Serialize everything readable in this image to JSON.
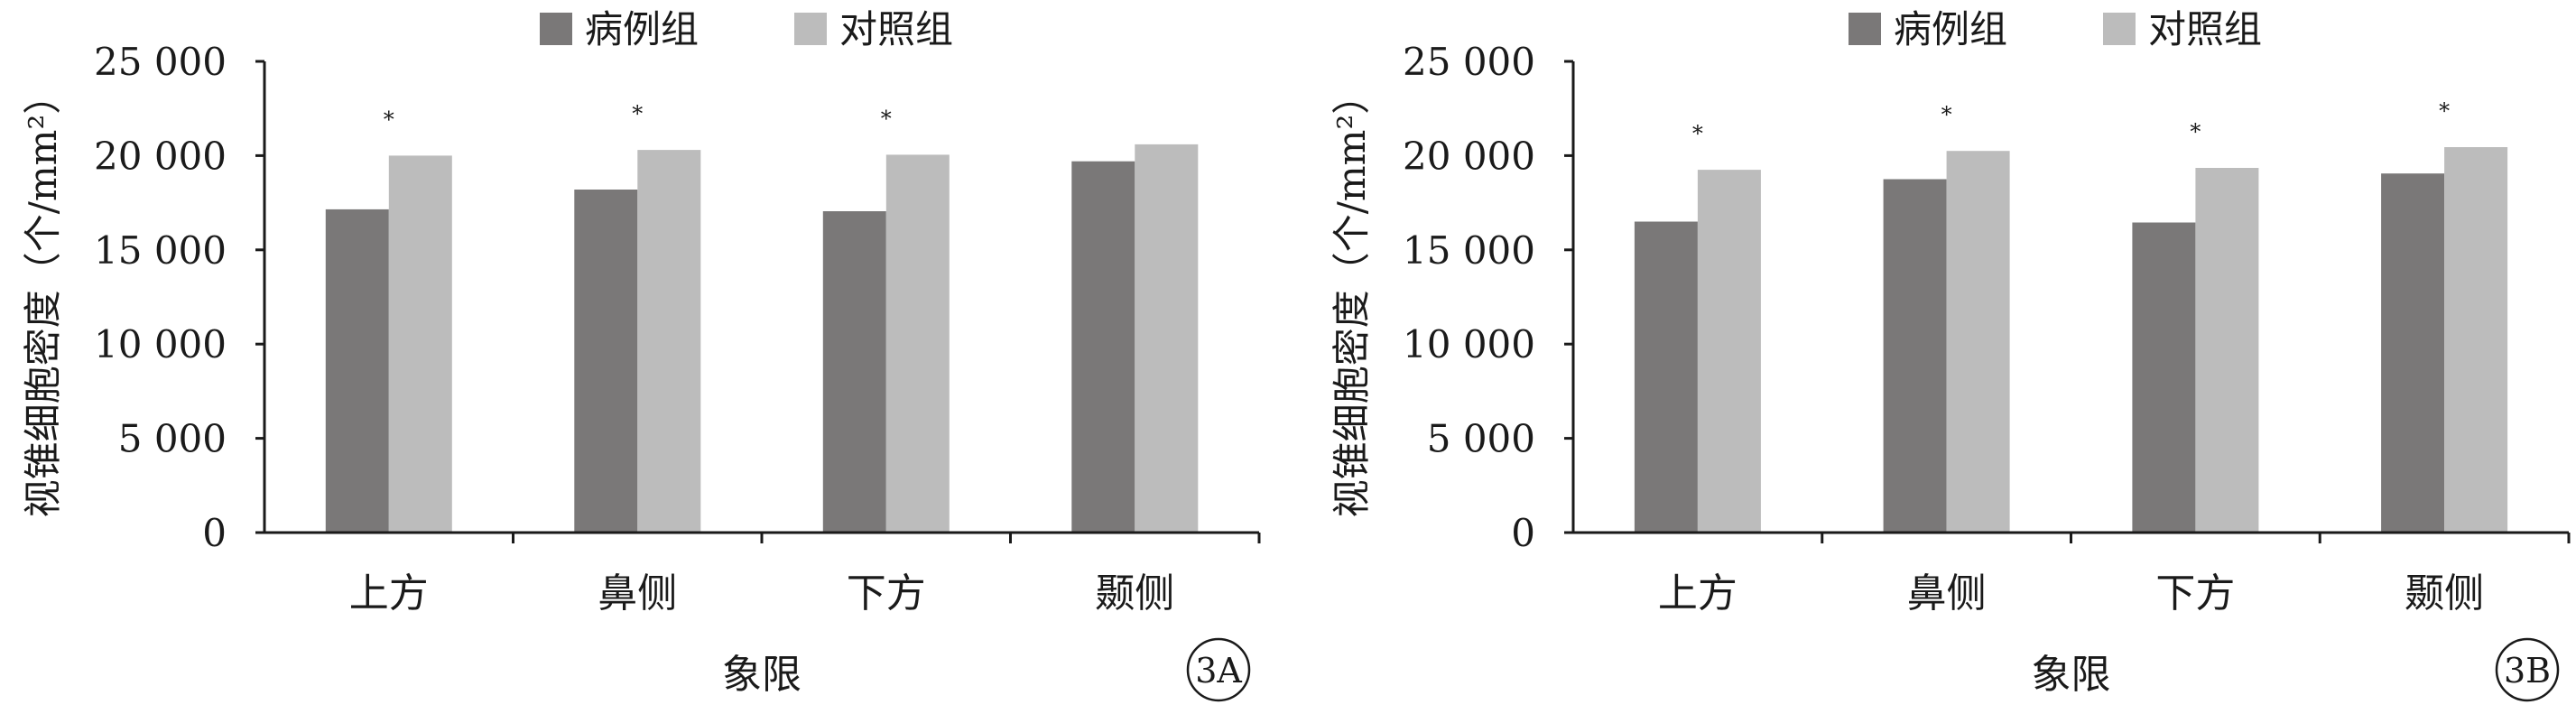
{
  "colors": {
    "case": "#7a7878",
    "control": "#bcbcbc",
    "axis": "#1a1a1a"
  },
  "chart_data": [
    {
      "type": "bar",
      "panel_label": "3A",
      "categories": [
        "上方",
        "鼻侧",
        "下方",
        "颞侧"
      ],
      "xlabel": "象限",
      "ylabel": "视锥细胞密度（个/mm²）",
      "ylim": [
        0,
        25000
      ],
      "yticks": [
        0,
        5000,
        10000,
        15000,
        20000,
        25000
      ],
      "ytick_labels": [
        "0",
        "5 000",
        "10 000",
        "15 000",
        "20 000",
        "25 000"
      ],
      "legend_position": "top",
      "grid": false,
      "series": [
        {
          "name": "病例组",
          "values": [
            17150,
            18200,
            17050,
            19700
          ]
        },
        {
          "name": "对照组",
          "values": [
            20000,
            20300,
            20050,
            20600
          ]
        }
      ],
      "annotations": [
        "*",
        "*",
        "*",
        ""
      ]
    },
    {
      "type": "bar",
      "panel_label": "3B",
      "categories": [
        "上方",
        "鼻侧",
        "下方",
        "颞侧"
      ],
      "xlabel": "象限",
      "ylabel": "视锥细胞密度（个/mm²）",
      "ylim": [
        0,
        25000
      ],
      "yticks": [
        0,
        5000,
        10000,
        15000,
        20000,
        25000
      ],
      "ytick_labels": [
        "0",
        "5 000",
        "10 000",
        "15 000",
        "20 000",
        "25 000"
      ],
      "legend_position": "top",
      "grid": false,
      "series": [
        {
          "name": "病例组",
          "values": [
            16500,
            18750,
            16450,
            19050
          ]
        },
        {
          "name": "对照组",
          "values": [
            19250,
            20250,
            19350,
            20450
          ]
        }
      ],
      "annotations": [
        "*",
        "*",
        "*",
        "*"
      ]
    }
  ]
}
